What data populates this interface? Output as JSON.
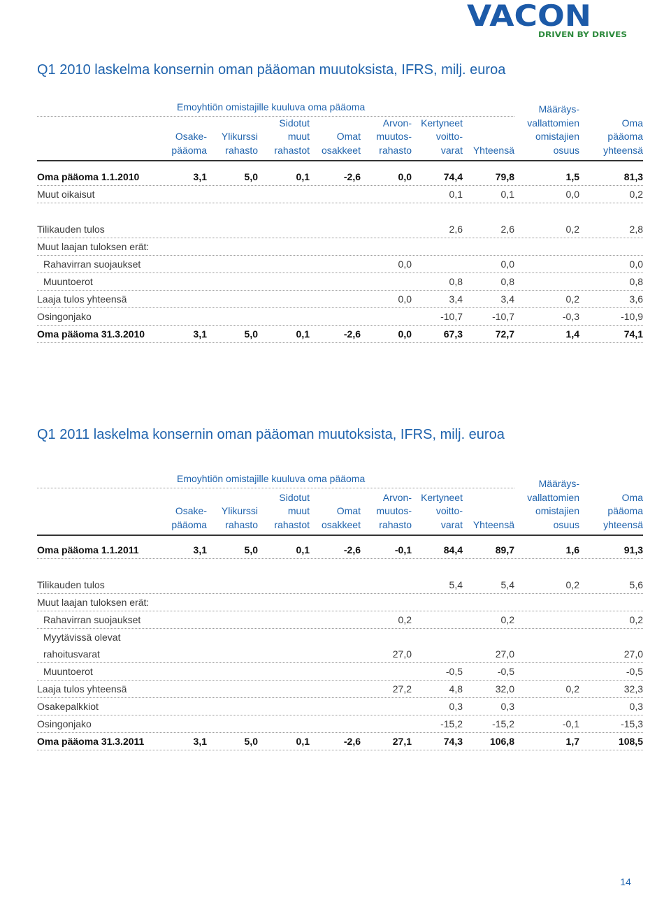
{
  "logo": {
    "name": "VACON",
    "tagline": "DRIVEN BY DRIVES"
  },
  "tables": [
    {
      "title": "Q1 2010 laskelma konsernin oman pääoman muutoksista, IFRS, milj. euroa",
      "group_header": "Emoyhtiön omistajille kuuluva oma pääoma",
      "columns": [
        [
          "Osake-",
          "pääoma"
        ],
        [
          "Ylikurssi",
          "rahasto"
        ],
        [
          "Sidotut",
          "muut",
          "rahastot"
        ],
        [
          "Omat",
          "osakkeet"
        ],
        [
          "Arvon-",
          "muutos-",
          "rahasto"
        ],
        [
          "Kertyneet",
          "voitto-",
          "varat"
        ],
        [
          "Yhteensä"
        ],
        [
          "Määräys-",
          "vallattomien",
          "omistajien",
          "osuus"
        ],
        [
          "Oma",
          "pääoma",
          "yhteensä"
        ]
      ],
      "rows": [
        {
          "label": "Oma pääoma 1.1.2010",
          "bold": true,
          "cells": [
            "3,1",
            "5,0",
            "0,1",
            "-2,6",
            "0,0",
            "74,4",
            "79,8",
            "1,5",
            "81,3"
          ]
        },
        {
          "label": "Muut oikaisut",
          "cells": [
            null,
            null,
            null,
            null,
            null,
            "0,1",
            "0,1",
            "0,0",
            "0,2"
          ]
        },
        {
          "label": "Tilikauden tulos",
          "gap": true,
          "cells": [
            null,
            null,
            null,
            null,
            null,
            "2,6",
            "2,6",
            "0,2",
            "2,8"
          ]
        },
        {
          "label": "Muut laajan tuloksen erät:",
          "cells": [
            null,
            null,
            null,
            null,
            null,
            null,
            null,
            null,
            null
          ]
        },
        {
          "label": "Rahavirran suojaukset",
          "indent": true,
          "cells": [
            null,
            null,
            null,
            null,
            "0,0",
            null,
            "0,0",
            null,
            "0,0"
          ]
        },
        {
          "label": "Muuntoerot",
          "indent": true,
          "cells": [
            null,
            null,
            null,
            null,
            null,
            "0,8",
            "0,8",
            null,
            "0,8"
          ]
        },
        {
          "label": "Laaja tulos yhteensä",
          "cells": [
            null,
            null,
            null,
            null,
            "0,0",
            "3,4",
            "3,4",
            "0,2",
            "3,6"
          ]
        },
        {
          "label": "Osingonjako",
          "cells": [
            null,
            null,
            null,
            null,
            null,
            "-10,7",
            "-10,7",
            "-0,3",
            "-10,9"
          ]
        },
        {
          "label": "Oma pääoma 31.3.2010",
          "bold": true,
          "cells": [
            "3,1",
            "5,0",
            "0,1",
            "-2,6",
            "0,0",
            "67,3",
            "72,7",
            "1,4",
            "74,1"
          ]
        }
      ]
    },
    {
      "title": "Q1 2011 laskelma konsernin oman pääoman muutoksista, IFRS, milj. euroa",
      "group_header": "Emoyhtiön omistajille kuuluva oma pääoma",
      "columns": [
        [
          "Osake-",
          "pääoma"
        ],
        [
          "Ylikurssi",
          "rahasto"
        ],
        [
          "Sidotut",
          "muut",
          "rahastot"
        ],
        [
          "Omat",
          "osakkeet"
        ],
        [
          "Arvon-",
          "muutos-",
          "rahasto"
        ],
        [
          "Kertyneet",
          "voitto-",
          "varat"
        ],
        [
          "Yhteensä"
        ],
        [
          "Määräys-",
          "vallattomien",
          "omistajien",
          "osuus"
        ],
        [
          "Oma",
          "pääoma",
          "yhteensä"
        ]
      ],
      "rows": [
        {
          "label": "Oma pääoma 1.1.2011",
          "bold": true,
          "cells": [
            "3,1",
            "5,0",
            "0,1",
            "-2,6",
            "-0,1",
            "84,4",
            "89,7",
            "1,6",
            "91,3"
          ]
        },
        {
          "label": "Tilikauden tulos",
          "gap": true,
          "cells": [
            null,
            null,
            null,
            null,
            null,
            "5,4",
            "5,4",
            "0,2",
            "5,6"
          ]
        },
        {
          "label": "Muut laajan tuloksen erät:",
          "cells": [
            null,
            null,
            null,
            null,
            null,
            null,
            null,
            null,
            null
          ]
        },
        {
          "label": "Rahavirran suojaukset",
          "indent": true,
          "cells": [
            null,
            null,
            null,
            null,
            "0,2",
            null,
            "0,2",
            null,
            "0,2"
          ]
        },
        {
          "label": [
            "Myytävissä olevat",
            "rahoitusvarat"
          ],
          "indent": true,
          "cells": [
            null,
            null,
            null,
            null,
            "27,0",
            null,
            "27,0",
            null,
            "27,0"
          ]
        },
        {
          "label": "Muuntoerot",
          "indent": true,
          "cells": [
            null,
            null,
            null,
            null,
            null,
            "-0,5",
            "-0,5",
            null,
            "-0,5"
          ]
        },
        {
          "label": "Laaja tulos yhteensä",
          "cells": [
            null,
            null,
            null,
            null,
            "27,2",
            "4,8",
            "32,0",
            "0,2",
            "32,3"
          ]
        },
        {
          "label": "Osakepalkkiot",
          "cells": [
            null,
            null,
            null,
            null,
            null,
            "0,3",
            "0,3",
            null,
            "0,3"
          ]
        },
        {
          "label": "Osingonjako",
          "cells": [
            null,
            null,
            null,
            null,
            null,
            "-15,2",
            "-15,2",
            "-0,1",
            "-15,3"
          ]
        },
        {
          "label": "Oma pääoma 31.3.2011",
          "bold": true,
          "cells": [
            "3,1",
            "5,0",
            "0,1",
            "-2,6",
            "27,1",
            "74,3",
            "106,8",
            "1,7",
            "108,5"
          ]
        }
      ]
    }
  ],
  "page_number": 14
}
